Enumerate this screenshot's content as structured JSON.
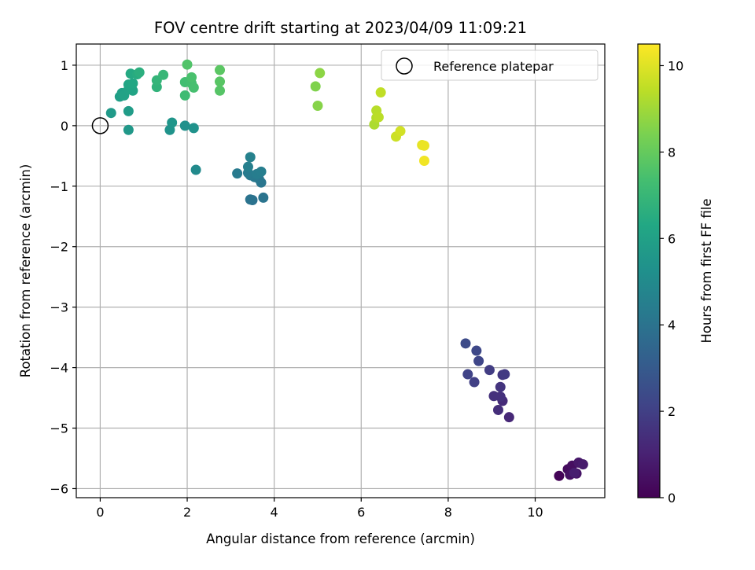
{
  "chart_data": {
    "type": "scatter",
    "title": "FOV centre drift starting at 2023/04/09 11:09:21",
    "xlabel": "Angular distance from reference (arcmin)",
    "ylabel": "Rotation from reference (arcmin)",
    "xlim": [
      -0.55,
      11.6
    ],
    "ylim": [
      -6.15,
      1.35
    ],
    "xticks": [
      0,
      2,
      4,
      6,
      8,
      10
    ],
    "yticks": [
      -6,
      -5,
      -4,
      -3,
      -2,
      -1,
      0,
      1
    ],
    "xtick_labels": [
      "0",
      "2",
      "4",
      "6",
      "8",
      "10"
    ],
    "ytick_labels": [
      "−6",
      "−5",
      "−4",
      "−3",
      "−2",
      "−1",
      "0",
      "1"
    ],
    "grid": true,
    "legend": {
      "position": "top-right",
      "label": "Reference platepar"
    },
    "reference_point": {
      "x": 0,
      "y": 0
    },
    "colorbar": {
      "label": "Hours from first FF file",
      "range": [
        0,
        10.5
      ],
      "ticks": [
        0,
        2,
        4,
        6,
        8,
        10
      ],
      "tick_labels": [
        "0",
        "2",
        "4",
        "6",
        "8",
        "10"
      ],
      "colormap": "viridis"
    },
    "points": [
      {
        "x": 10.55,
        "y": -5.79,
        "hours": 0.1
      },
      {
        "x": 10.75,
        "y": -5.68,
        "hours": 0.3
      },
      {
        "x": 10.85,
        "y": -5.62,
        "hours": 0.4
      },
      {
        "x": 10.8,
        "y": -5.77,
        "hours": 0.5
      },
      {
        "x": 10.95,
        "y": -5.75,
        "hours": 0.6
      },
      {
        "x": 11.0,
        "y": -5.57,
        "hours": 0.7
      },
      {
        "x": 11.1,
        "y": -5.6,
        "hours": 0.8
      },
      {
        "x": 10.9,
        "y": -5.74,
        "hours": 0.9
      },
      {
        "x": 9.4,
        "y": -4.82,
        "hours": 1.2
      },
      {
        "x": 9.25,
        "y": -4.55,
        "hours": 1.3
      },
      {
        "x": 9.15,
        "y": -4.7,
        "hours": 1.4
      },
      {
        "x": 9.2,
        "y": -4.48,
        "hours": 1.5
      },
      {
        "x": 9.05,
        "y": -4.47,
        "hours": 1.5
      },
      {
        "x": 9.2,
        "y": -4.32,
        "hours": 1.6
      },
      {
        "x": 9.25,
        "y": -4.12,
        "hours": 1.7
      },
      {
        "x": 9.3,
        "y": -4.11,
        "hours": 1.8
      },
      {
        "x": 8.95,
        "y": -4.04,
        "hours": 1.9
      },
      {
        "x": 8.6,
        "y": -4.24,
        "hours": 2.0
      },
      {
        "x": 8.45,
        "y": -4.11,
        "hours": 2.1
      },
      {
        "x": 8.7,
        "y": -3.89,
        "hours": 2.2
      },
      {
        "x": 8.65,
        "y": -3.72,
        "hours": 2.3
      },
      {
        "x": 8.4,
        "y": -3.6,
        "hours": 2.4
      },
      {
        "x": 3.5,
        "y": -1.23,
        "hours": 3.9
      },
      {
        "x": 3.45,
        "y": -1.22,
        "hours": 4.0
      },
      {
        "x": 3.75,
        "y": -1.19,
        "hours": 4.05
      },
      {
        "x": 3.7,
        "y": -0.94,
        "hours": 4.1
      },
      {
        "x": 3.65,
        "y": -0.88,
        "hours": 4.15
      },
      {
        "x": 3.55,
        "y": -0.85,
        "hours": 4.2
      },
      {
        "x": 3.45,
        "y": -0.82,
        "hours": 4.25
      },
      {
        "x": 3.15,
        "y": -0.79,
        "hours": 4.3
      },
      {
        "x": 3.4,
        "y": -0.78,
        "hours": 4.35
      },
      {
        "x": 3.6,
        "y": -0.8,
        "hours": 4.4
      },
      {
        "x": 3.7,
        "y": -0.76,
        "hours": 4.45
      },
      {
        "x": 3.4,
        "y": -0.68,
        "hours": 4.5
      },
      {
        "x": 3.45,
        "y": -0.52,
        "hours": 4.6
      },
      {
        "x": 2.2,
        "y": -0.73,
        "hours": 5.0
      },
      {
        "x": 1.95,
        "y": 0.0,
        "hours": 5.3
      },
      {
        "x": 2.15,
        "y": -0.04,
        "hours": 5.35
      },
      {
        "x": 1.6,
        "y": -0.07,
        "hours": 5.4
      },
      {
        "x": 1.65,
        "y": 0.05,
        "hours": 5.5
      },
      {
        "x": 0.65,
        "y": -0.07,
        "hours": 5.6
      },
      {
        "x": 0.25,
        "y": 0.21,
        "hours": 5.7
      },
      {
        "x": 0.65,
        "y": 0.24,
        "hours": 5.8
      },
      {
        "x": 0.45,
        "y": 0.48,
        "hours": 5.9
      },
      {
        "x": 0.5,
        "y": 0.54,
        "hours": 6.0
      },
      {
        "x": 0.55,
        "y": 0.5,
        "hours": 6.05
      },
      {
        "x": 0.65,
        "y": 0.6,
        "hours": 6.1
      },
      {
        "x": 0.75,
        "y": 0.58,
        "hours": 6.15
      },
      {
        "x": 0.65,
        "y": 0.68,
        "hours": 6.2
      },
      {
        "x": 0.75,
        "y": 0.7,
        "hours": 6.3
      },
      {
        "x": 0.7,
        "y": 0.86,
        "hours": 6.4
      },
      {
        "x": 0.85,
        "y": 0.85,
        "hours": 6.5
      },
      {
        "x": 0.9,
        "y": 0.88,
        "hours": 6.6
      },
      {
        "x": 1.3,
        "y": 0.64,
        "hours": 6.8
      },
      {
        "x": 1.3,
        "y": 0.75,
        "hours": 6.9
      },
      {
        "x": 1.45,
        "y": 0.84,
        "hours": 7.0
      },
      {
        "x": 1.95,
        "y": 0.5,
        "hours": 7.2
      },
      {
        "x": 1.95,
        "y": 0.72,
        "hours": 7.3
      },
      {
        "x": 2.1,
        "y": 0.7,
        "hours": 7.35
      },
      {
        "x": 2.15,
        "y": 0.63,
        "hours": 7.4
      },
      {
        "x": 2.1,
        "y": 0.8,
        "hours": 7.45
      },
      {
        "x": 2.0,
        "y": 1.01,
        "hours": 7.6
      },
      {
        "x": 2.75,
        "y": 0.58,
        "hours": 7.7
      },
      {
        "x": 2.75,
        "y": 0.73,
        "hours": 7.75
      },
      {
        "x": 2.75,
        "y": 0.92,
        "hours": 7.8
      },
      {
        "x": 4.95,
        "y": 0.65,
        "hours": 8.5
      },
      {
        "x": 5.0,
        "y": 0.33,
        "hours": 8.6
      },
      {
        "x": 5.05,
        "y": 0.87,
        "hours": 8.7
      },
      {
        "x": 6.3,
        "y": 0.02,
        "hours": 9.2
      },
      {
        "x": 6.35,
        "y": 0.13,
        "hours": 9.3
      },
      {
        "x": 6.35,
        "y": 0.25,
        "hours": 9.35
      },
      {
        "x": 6.4,
        "y": 0.14,
        "hours": 9.4
      },
      {
        "x": 6.45,
        "y": 0.55,
        "hours": 9.5
      },
      {
        "x": 6.8,
        "y": -0.18,
        "hours": 9.7
      },
      {
        "x": 6.9,
        "y": -0.09,
        "hours": 9.8
      },
      {
        "x": 7.4,
        "y": -0.32,
        "hours": 10.1
      },
      {
        "x": 7.45,
        "y": -0.33,
        "hours": 10.2
      },
      {
        "x": 7.45,
        "y": -0.58,
        "hours": 10.3
      }
    ]
  }
}
